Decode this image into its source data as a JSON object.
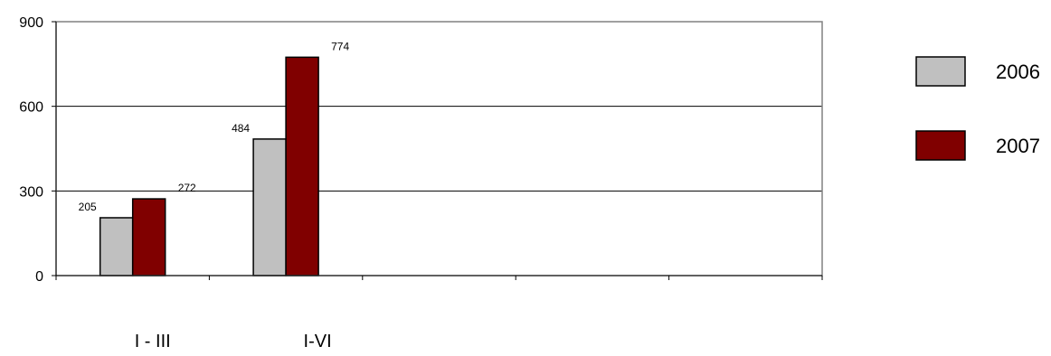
{
  "chart_data": {
    "type": "bar",
    "categories": [
      "I - III",
      "I-VI",
      "",
      "",
      ""
    ],
    "series": [
      {
        "name": "2006",
        "values": [
          205,
          484,
          null,
          null,
          null
        ],
        "color": "#c0c0c0"
      },
      {
        "name": "2007",
        "values": [
          272,
          774,
          null,
          null,
          null
        ],
        "color": "#800000"
      }
    ],
    "ylim": [
      0,
      900
    ],
    "yticks": [
      0,
      300,
      600,
      900
    ],
    "grid": true,
    "legend": "right",
    "title": "",
    "xlabel": "",
    "ylabel": ""
  }
}
